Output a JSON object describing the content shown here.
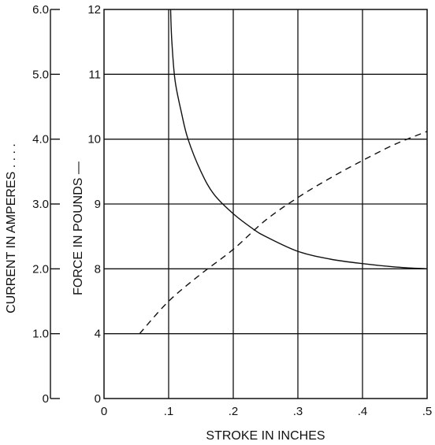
{
  "chart_data": {
    "type": "line",
    "xlabel": "STROKE IN INCHES",
    "x_ticks": [
      "0",
      ".1",
      ".2",
      ".3",
      ".4",
      ".5"
    ],
    "xlim": [
      0,
      0.5
    ],
    "grid": true,
    "force_axis": {
      "label": "FORCE IN POUNDS —",
      "tick_labels": [
        "0",
        "4",
        "8",
        "9",
        "10",
        "11",
        "12"
      ]
    },
    "current_axis": {
      "label": "CURRENT IN AMPERES . . . .",
      "tick_labels": [
        "0",
        "1.0",
        "2.0",
        "3.0",
        "4.0",
        "5.0",
        "6.0"
      ],
      "ylim": [
        0,
        6
      ]
    },
    "series": [
      {
        "style": "solid",
        "axis": "force",
        "x": [
          0.103,
          0.105,
          0.11,
          0.12,
          0.13,
          0.15,
          0.17,
          0.2,
          0.23,
          0.25,
          0.3,
          0.35,
          0.4,
          0.45,
          0.5
        ],
        "y": [
          12.0,
          11.5,
          10.9,
          10.4,
          10.0,
          9.5,
          9.15,
          8.85,
          8.62,
          8.5,
          8.27,
          8.15,
          8.08,
          8.03,
          8.0
        ]
      },
      {
        "style": "dashed",
        "axis": "current",
        "x": [
          0.055,
          0.1,
          0.15,
          0.2,
          0.25,
          0.3,
          0.35,
          0.4,
          0.45,
          0.5
        ],
        "y": [
          1.0,
          1.5,
          1.92,
          2.3,
          2.75,
          3.1,
          3.4,
          3.67,
          3.92,
          4.12
        ]
      }
    ]
  }
}
